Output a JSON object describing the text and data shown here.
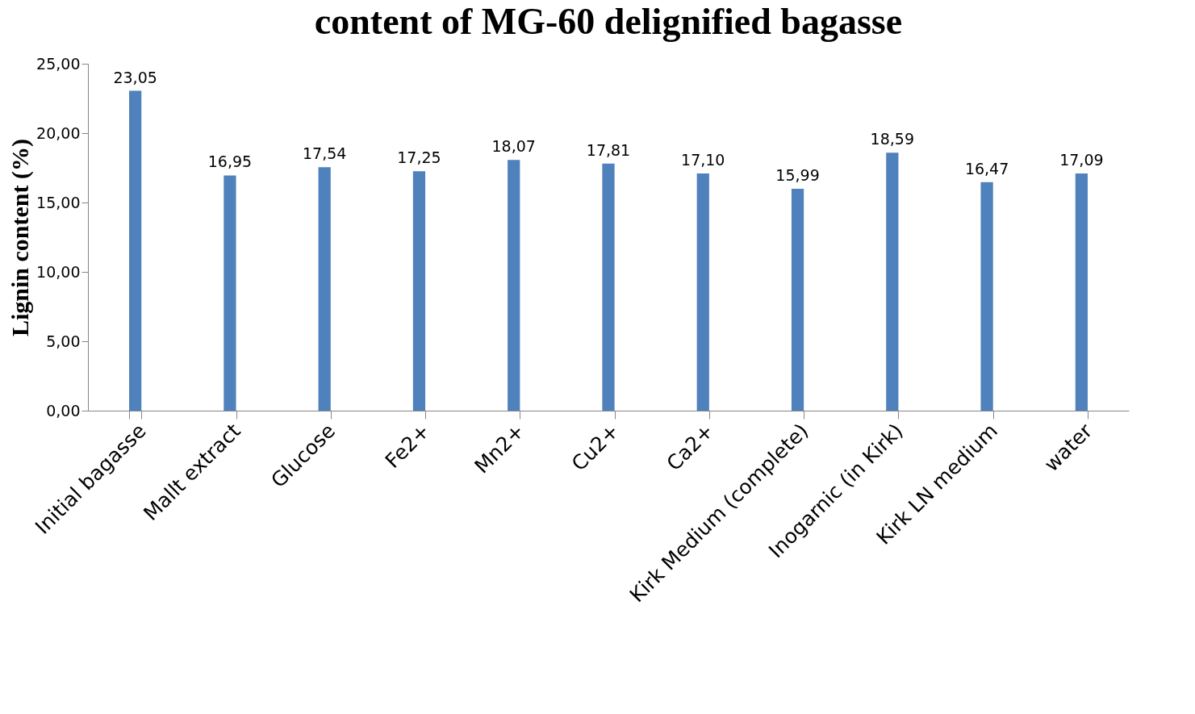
{
  "chart_data": {
    "type": "bar",
    "title": "content of MG-60 delignified bagasse",
    "ylabel": "Lignin content (%)",
    "categories": [
      "Initial bagasse",
      "Mallt extract",
      "Glucose",
      "Fe2+",
      "Mn2+",
      "Cu2+",
      "Ca2+",
      "Kirk Medium (complete)",
      "Inogarnic (in Kirk)",
      "Kirk LN medium",
      "water"
    ],
    "values": [
      23.05,
      16.95,
      17.54,
      17.25,
      18.07,
      17.81,
      17.1,
      15.99,
      18.59,
      16.47,
      17.09
    ],
    "value_labels": [
      "23,05",
      "16,95",
      "17,54",
      "17,25",
      "18,07",
      "17,81",
      "17,10",
      "15,99",
      "18,59",
      "16,47",
      "17,09"
    ],
    "color": "#4f81bd",
    "ylim": [
      0,
      25
    ],
    "yticks": [
      {
        "value": 0,
        "label": "0,00"
      },
      {
        "value": 5,
        "label": "5,00"
      },
      {
        "value": 10,
        "label": "10,00"
      },
      {
        "value": 15,
        "label": "15,00"
      },
      {
        "value": 20,
        "label": "20,00"
      },
      {
        "value": 25,
        "label": "25,00"
      }
    ],
    "grid": false
  }
}
